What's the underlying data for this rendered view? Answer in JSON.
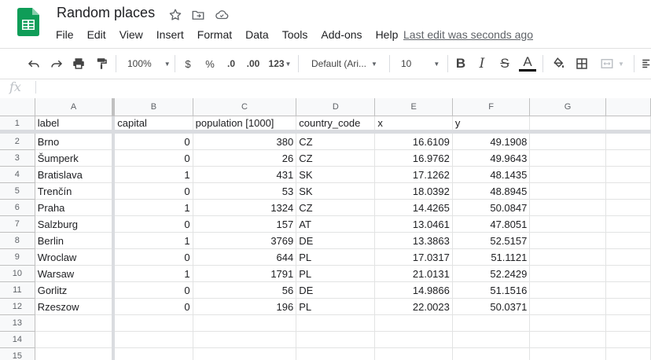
{
  "app": {
    "title": "Random places",
    "last_edit": "Last edit was seconds ago",
    "brand_color": "#0f9d58"
  },
  "menu": [
    "File",
    "Edit",
    "View",
    "Insert",
    "Format",
    "Data",
    "Tools",
    "Add-ons",
    "Help"
  ],
  "toolbar": {
    "zoom": "100%",
    "currency": "$",
    "percent": "%",
    "decrease_decimal": ".0",
    "increase_decimal": ".00",
    "number_format": "123",
    "font": "Default (Ari...",
    "font_size": "10",
    "bold": "B",
    "italic": "I",
    "strikethrough": "S",
    "text_color": "A"
  },
  "formula_bar": {
    "fx": "fx",
    "value": ""
  },
  "sheet": {
    "columns": [
      "A",
      "B",
      "C",
      "D",
      "E",
      "F",
      "G"
    ],
    "header_row": [
      "label",
      "capital",
      "population [1000]",
      "country_code",
      "x",
      "y",
      ""
    ],
    "rows": [
      [
        "Brno",
        "0",
        "380",
        "CZ",
        "16.6109",
        "49.1908",
        ""
      ],
      [
        "Šumperk",
        "0",
        "26",
        "CZ",
        "16.9762",
        "49.9643",
        ""
      ],
      [
        "Bratislava",
        "1",
        "431",
        "SK",
        "17.1262",
        "48.1435",
        ""
      ],
      [
        "Trenčín",
        "0",
        "53",
        "SK",
        "18.0392",
        "48.8945",
        ""
      ],
      [
        "Praha",
        "1",
        "1324",
        "CZ",
        "14.4265",
        "50.0847",
        ""
      ],
      [
        "Salzburg",
        "0",
        "157",
        "AT",
        "13.0461",
        "47.8051",
        ""
      ],
      [
        "Berlin",
        "1",
        "3769",
        "DE",
        "13.3863",
        "52.5157",
        ""
      ],
      [
        "Wroclaw",
        "0",
        "644",
        "PL",
        "17.0317",
        "51.1121",
        ""
      ],
      [
        "Warsaw",
        "1",
        "1791",
        "PL",
        "21.0131",
        "52.2429",
        ""
      ],
      [
        "Gorlitz",
        "0",
        "56",
        "DE",
        "14.9866",
        "51.1516",
        ""
      ],
      [
        "Rzeszow",
        "0",
        "196",
        "PL",
        "22.0023",
        "50.0371",
        ""
      ],
      [
        "",
        "",
        "",
        "",
        "",
        "",
        ""
      ],
      [
        "",
        "",
        "",
        "",
        "",
        "",
        ""
      ],
      [
        "",
        "",
        "",
        "",
        "",
        "",
        ""
      ]
    ],
    "numeric_columns": [
      1,
      2,
      4,
      5
    ]
  }
}
